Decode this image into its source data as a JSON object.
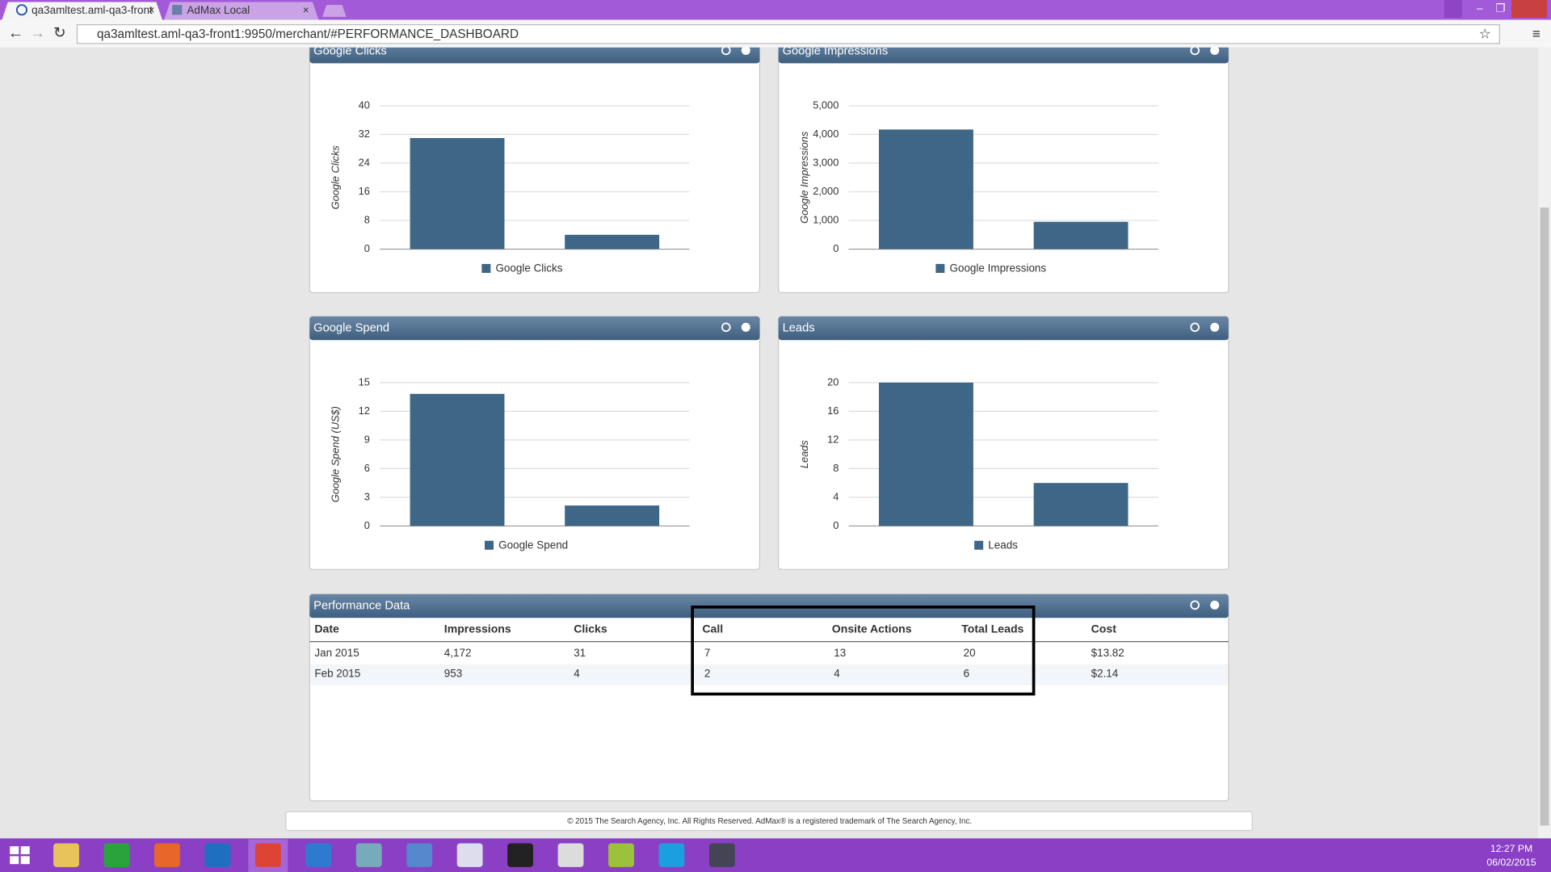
{
  "browser": {
    "tabs": [
      "qa3amltest.aml-qa3-front",
      "AdMax Local"
    ],
    "url": "qa3amltest.aml-qa3-front1:9950/merchant/#PERFORMANCE_DASHBOARD"
  },
  "chart_data": [
    {
      "type": "bar",
      "title": "Google Clicks",
      "y_label": "Google Clicks",
      "categories": [
        null,
        null
      ],
      "series": [
        {
          "name": "Google Clicks",
          "color": "#3e6686",
          "values": [
            31,
            4
          ]
        }
      ],
      "ylim": [
        0,
        40
      ],
      "yticks": [
        0,
        8,
        16,
        24,
        32,
        40
      ],
      "grid": true
    },
    {
      "type": "bar",
      "title": "Google Impressions",
      "y_label": "Google Impressions",
      "categories": [
        null,
        null
      ],
      "series": [
        {
          "name": "Google Impressions",
          "color": "#3e6686",
          "values": [
            4172,
            953
          ]
        }
      ],
      "ylim": [
        0,
        5000
      ],
      "yticks": [
        0,
        {
          "value": 1000,
          "label": "1,000"
        },
        {
          "value": 2000,
          "label": "2,000"
        },
        {
          "value": 3000,
          "label": "3,000"
        },
        {
          "value": 4000,
          "label": "4,000"
        },
        {
          "value": 5000,
          "label": "5,000"
        }
      ],
      "grid": true
    },
    {
      "type": "bar",
      "title": "Google Spend",
      "y_label": "Google Spend (US$)",
      "categories": [
        null,
        null
      ],
      "series": [
        {
          "name": "Google Spend",
          "color": "#3e6686",
          "values": [
            13.82,
            2.14
          ]
        }
      ],
      "ylim": [
        0,
        15
      ],
      "yticks": [
        0,
        3,
        6,
        9,
        12,
        15
      ],
      "grid": true
    },
    {
      "type": "bar",
      "title": "Leads",
      "y_label": "Leads",
      "categories": [
        null,
        null
      ],
      "series": [
        {
          "name": "Leads",
          "color": "#3e6686",
          "values": [
            20,
            6
          ]
        }
      ],
      "ylim": [
        0,
        20
      ],
      "yticks": [
        0,
        4,
        8,
        12,
        16,
        20
      ],
      "grid": true
    }
  ],
  "table": {
    "title": "Performance Data",
    "columns": [
      "Date",
      "Impressions",
      "Clicks",
      "Call",
      "Onsite Actions",
      "Total Leads",
      "Cost"
    ],
    "rows": [
      [
        "Jan 2015",
        "4,172",
        "31",
        "7",
        "13",
        "20",
        "$13.82"
      ],
      [
        "Feb 2015",
        "953",
        "4",
        "2",
        "4",
        "6",
        "$2.14"
      ]
    ]
  },
  "footer": "© 2015 The Search Agency, Inc. All Rights Reserved. AdMax® is a registered trademark of The Search Agency, Inc.",
  "taskbar": {
    "time": "12:27 PM",
    "date": "06/02/2015"
  }
}
